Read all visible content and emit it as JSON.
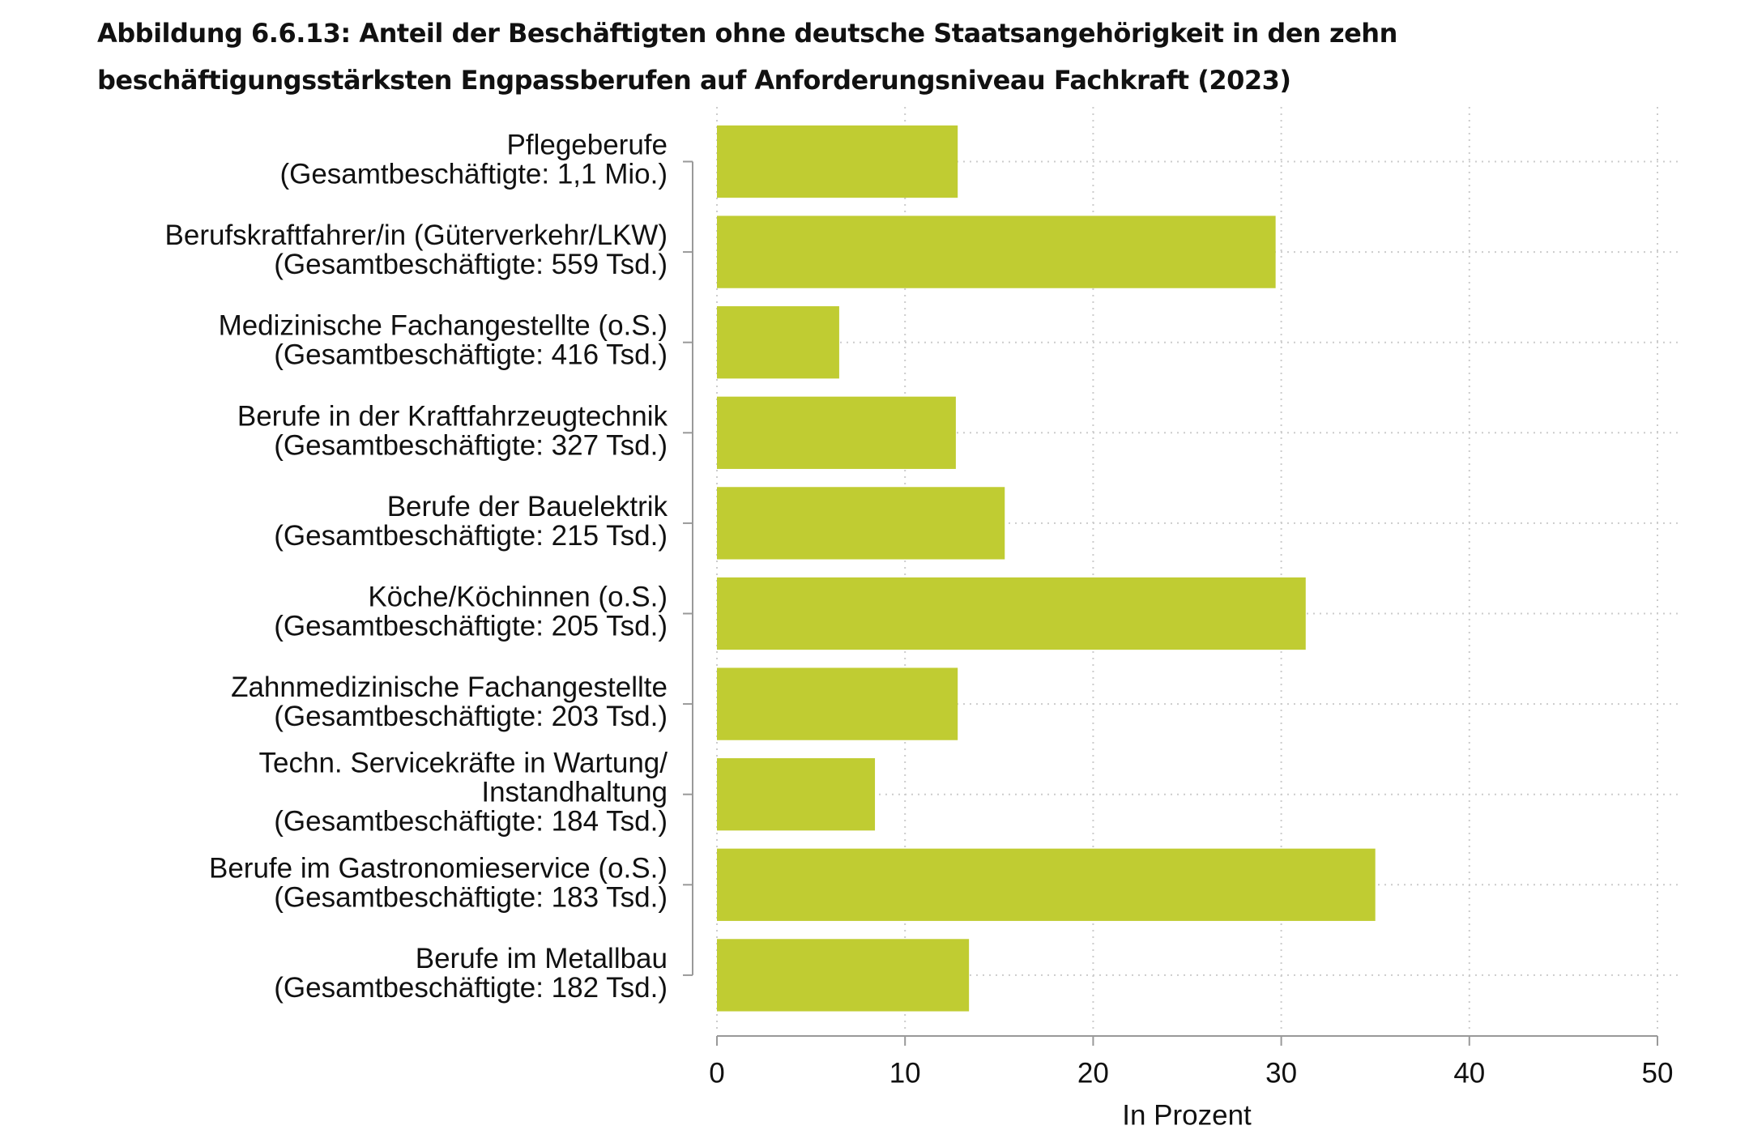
{
  "chart_data": {
    "type": "barh",
    "title": "Abbildung 6.6.13: Anteil der Beschäftigten ohne deutsche Staatsangehörigkeit in den zehn beschäftigungsstärksten Engpassberufen auf Anforderungsniveau Fachkraft (2023)",
    "categories": [
      "Pflegeberufe\n(Gesamtbeschäftigte: 1,1 Mio.)",
      "Berufskraftfahrer/in (Güterverkehr/LKW)\n(Gesamtbeschäftigte: 559 Tsd.)",
      "Medizinische Fachangestellte (o.S.)\n(Gesamtbeschäftigte: 416 Tsd.)",
      "Berufe in der Kraftfahrzeugtechnik\n(Gesamtbeschäftigte: 327 Tsd.)",
      "Berufe der Bauelektrik\n(Gesamtbeschäftigte: 215 Tsd.)",
      "Köche/Köchinnen (o.S.)\n(Gesamtbeschäftigte: 205 Tsd.)",
      "Zahnmedizinische Fachangestellte\n(Gesamtbeschäftigte: 203 Tsd.)",
      "Techn. Servicekräfte in Wartung/\nInstandhaltung\n(Gesamtbeschäftigte: 184 Tsd.)",
      "Berufe im Gastronomieservice (o.S.)\n(Gesamtbeschäftigte: 183 Tsd.)",
      "Berufe im Metallbau\n(Gesamtbeschäftigte: 182 Tsd.)"
    ],
    "values": [
      12.8,
      29.7,
      6.5,
      12.7,
      15.3,
      31.3,
      12.8,
      8.4,
      35.0,
      13.4
    ],
    "color": "#c0cc32",
    "xlabel": "In Prozent",
    "xlim": [
      0,
      50
    ],
    "xticks": [
      0,
      10,
      20,
      30,
      40,
      50
    ],
    "grid": true
  }
}
